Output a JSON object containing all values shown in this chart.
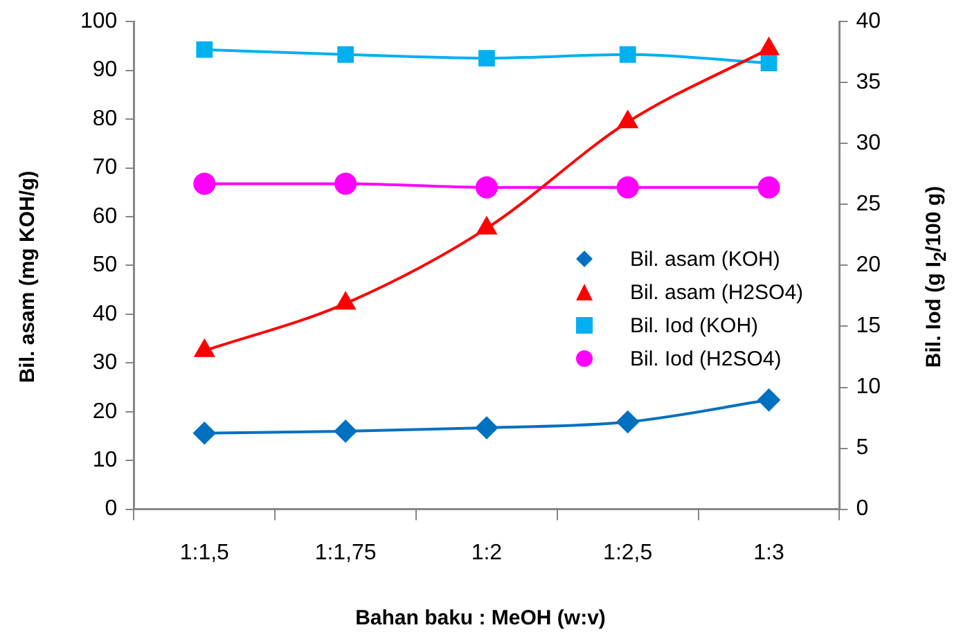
{
  "chart_data": {
    "type": "line",
    "xlabel": "Bahan baku : MeOH (w:v)",
    "ylabel": "Bil. asam (mg KOH/g)",
    "y2label": "Bil. Iod (g I$_{2}$/100 g)",
    "categories": [
      "1:1,5",
      "1:1,75",
      "1:2",
      "1:2,5",
      "1:3"
    ],
    "series": [
      {
        "name": "Bil. asam (KOH)",
        "color": "#0070c0",
        "marker": "diamond",
        "values": [
          15.6,
          16.0,
          16.7,
          17.9,
          22.4
        ]
      },
      {
        "name": "Bil. asam (H2SO4)",
        "color": "#ff0000",
        "marker": "triangle",
        "values": [
          32.5,
          42.2,
          57.6,
          79.4,
          94.4
        ]
      },
      {
        "name": "Bil. Iod (KOH)",
        "color": "#00b0f0",
        "marker": "square",
        "axis": "y2",
        "values": [
          37.7,
          37.3,
          37.0,
          37.3,
          36.6
        ]
      },
      {
        "name": "Bil. Iod (H2SO4)",
        "color": "#ff00ff",
        "marker": "circle",
        "axis": "y2",
        "values": [
          26.7,
          26.7,
          26.4,
          26.4,
          26.4
        ]
      }
    ],
    "ylim": [
      0,
      100
    ],
    "yticks": [
      0,
      10,
      20,
      30,
      40,
      50,
      60,
      70,
      80,
      90,
      100
    ],
    "y2lim": [
      0,
      40
    ],
    "y2ticks": [
      0,
      5,
      10,
      15,
      20,
      25,
      30,
      35,
      40
    ],
    "grid": false,
    "legend": "right",
    "line_style": "solid"
  }
}
